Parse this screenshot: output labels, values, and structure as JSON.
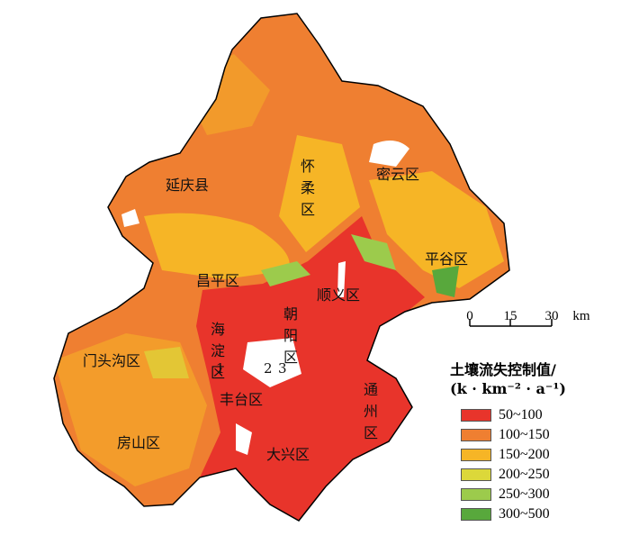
{
  "districts": [
    {
      "label": "延庆县",
      "vertical": false
    },
    {
      "label": "怀柔区",
      "vertical": true
    },
    {
      "label": "密云区",
      "vertical": false
    },
    {
      "label": "平谷区",
      "vertical": false
    },
    {
      "label": "昌平区",
      "vertical": false
    },
    {
      "label": "顺义区",
      "vertical": false
    },
    {
      "label": "海淀区",
      "vertical": true
    },
    {
      "label": "朝阳区",
      "vertical": true
    },
    {
      "label": "门头沟区",
      "vertical": false
    },
    {
      "label": "通州区",
      "vertical": true
    },
    {
      "label": "丰台区",
      "vertical": false
    },
    {
      "label": "房山区",
      "vertical": false
    },
    {
      "label": "大兴区",
      "vertical": false
    },
    {
      "label": "1",
      "vertical": false
    },
    {
      "label": "2",
      "vertical": false
    },
    {
      "label": "3",
      "vertical": false
    }
  ],
  "scale": {
    "ticks": [
      "0",
      "15",
      "30"
    ],
    "unit": "km"
  },
  "legend": {
    "title": [
      "土壤流失控制值/",
      "(k · km⁻² · a⁻¹)"
    ],
    "items": [
      {
        "label": "50~100",
        "color": "#e8342b"
      },
      {
        "label": "100~150",
        "color": "#ef7f31"
      },
      {
        "label": "150~200",
        "color": "#f6b526"
      },
      {
        "label": "200~250",
        "color": "#dcd83a"
      },
      {
        "label": "250~300",
        "color": "#9ccb4c"
      },
      {
        "label": "300~500",
        "color": "#58a83c"
      }
    ]
  }
}
